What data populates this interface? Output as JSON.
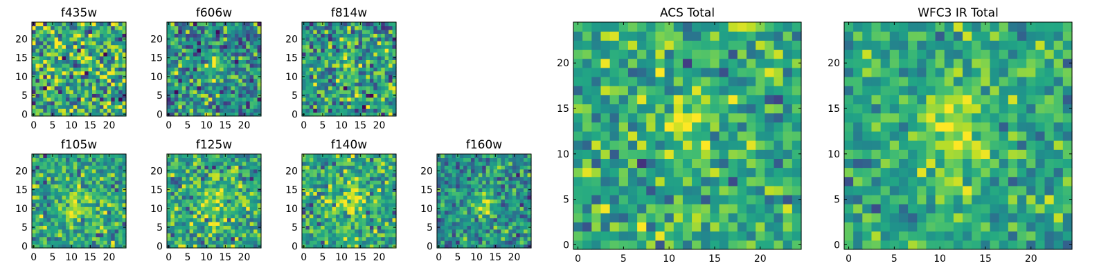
{
  "chart_data": {
    "type": "heatmap",
    "colormap": "viridis",
    "grid_size": 25,
    "panels": [
      {
        "id": "f435w",
        "title": "f435w",
        "xlim": [
          0,
          24
        ],
        "ylim": [
          0,
          24
        ],
        "xticks": [
          0,
          5,
          10,
          15,
          20
        ],
        "yticks": [
          0,
          5,
          10,
          15,
          20
        ],
        "source_center": [
          12,
          12
        ],
        "source_strength": 0.08,
        "source_sigma": [
          1.2,
          2.0
        ],
        "noise": 0.3,
        "background": 0.62,
        "seed": 11
      },
      {
        "id": "f606w",
        "title": "f606w",
        "xlim": [
          0,
          24
        ],
        "ylim": [
          0,
          24
        ],
        "xticks": [
          0,
          5,
          10,
          15,
          20
        ],
        "yticks": [
          0,
          5,
          10,
          15,
          20
        ],
        "source_center": [
          12,
          13
        ],
        "source_strength": 0.35,
        "source_sigma": [
          1.3,
          2.5
        ],
        "noise": 0.26,
        "background": 0.5,
        "seed": 23
      },
      {
        "id": "f814w",
        "title": "f814w",
        "xlim": [
          0,
          24
        ],
        "ylim": [
          0,
          24
        ],
        "xticks": [
          0,
          5,
          10,
          15,
          20
        ],
        "yticks": [
          0,
          5,
          10,
          15,
          20
        ],
        "source_center": [
          12,
          13
        ],
        "source_strength": 0.3,
        "source_sigma": [
          1.3,
          2.5
        ],
        "noise": 0.26,
        "background": 0.55,
        "seed": 37
      },
      {
        "id": "f105w",
        "title": "f105w",
        "xlim": [
          0,
          24
        ],
        "ylim": [
          0,
          24
        ],
        "xticks": [
          0,
          5,
          10,
          15,
          20
        ],
        "yticks": [
          0,
          5,
          10,
          15,
          20
        ],
        "source_center": [
          12,
          11
        ],
        "source_strength": 0.28,
        "source_sigma": [
          3.0,
          3.5
        ],
        "noise": 0.22,
        "background": 0.58,
        "seed": 41
      },
      {
        "id": "f125w",
        "title": "f125w",
        "xlim": [
          0,
          24
        ],
        "ylim": [
          0,
          24
        ],
        "xticks": [
          0,
          5,
          10,
          15,
          20
        ],
        "yticks": [
          0,
          5,
          10,
          15,
          20
        ],
        "source_center": [
          12,
          11
        ],
        "source_strength": 0.22,
        "source_sigma": [
          3.0,
          3.5
        ],
        "noise": 0.22,
        "background": 0.6,
        "seed": 53
      },
      {
        "id": "f140w",
        "title": "f140w",
        "xlim": [
          0,
          24
        ],
        "ylim": [
          0,
          24
        ],
        "xticks": [
          0,
          5,
          10,
          15,
          20
        ],
        "yticks": [
          0,
          5,
          10,
          15,
          20
        ],
        "source_center": [
          12,
          12
        ],
        "source_strength": 0.28,
        "source_sigma": [
          3.0,
          3.5
        ],
        "noise": 0.22,
        "background": 0.6,
        "seed": 67
      },
      {
        "id": "f160w",
        "title": "f160w",
        "xlim": [
          0,
          24
        ],
        "ylim": [
          0,
          24
        ],
        "xticks": [
          0,
          5,
          10,
          15,
          20
        ],
        "yticks": [
          0,
          5,
          10,
          15,
          20
        ],
        "source_center": [
          12,
          11
        ],
        "source_strength": 0.35,
        "source_sigma": [
          2.0,
          2.5
        ],
        "noise": 0.2,
        "background": 0.5,
        "seed": 79
      },
      {
        "id": "acs-total",
        "title": "ACS Total",
        "xlim": [
          0,
          24
        ],
        "ylim": [
          0,
          24
        ],
        "xticks": [
          0,
          5,
          10,
          15,
          20
        ],
        "yticks": [
          0,
          5,
          10,
          15,
          20
        ],
        "source_center": [
          12,
          13
        ],
        "source_strength": 0.3,
        "source_sigma": [
          1.4,
          3.0
        ],
        "noise": 0.2,
        "background": 0.62,
        "seed": 97
      },
      {
        "id": "wfc3-ir-total",
        "title": "WFC3 IR Total",
        "xlim": [
          0,
          24
        ],
        "ylim": [
          0,
          24
        ],
        "xticks": [
          0,
          5,
          10,
          15,
          20
        ],
        "yticks": [
          0,
          5,
          10,
          15,
          20
        ],
        "source_center": [
          12,
          12
        ],
        "source_strength": 0.3,
        "source_sigma": [
          2.5,
          3.5
        ],
        "noise": 0.17,
        "background": 0.6,
        "seed": 113
      }
    ]
  }
}
